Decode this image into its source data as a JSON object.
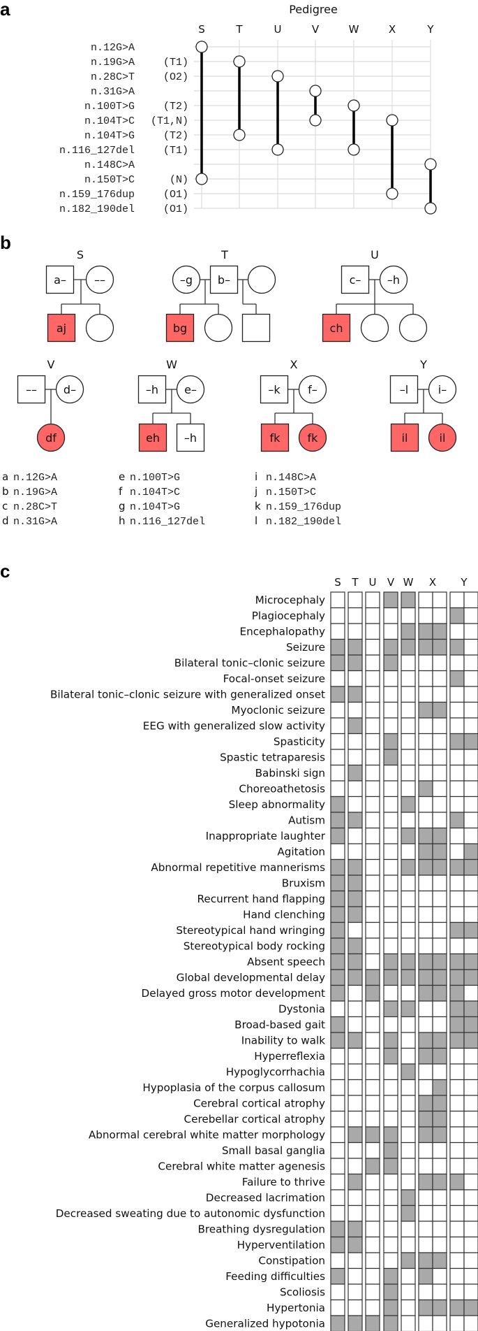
{
  "panel_labels": {
    "a": "a",
    "b": "b",
    "c": "c"
  },
  "panel_a": {
    "title": "Pedigree",
    "families": [
      "S",
      "T",
      "U",
      "V",
      "W",
      "X",
      "Y"
    ],
    "variants": [
      {
        "name": "n.12G>A",
        "note": ""
      },
      {
        "name": "n.19G>A",
        "note": "(T1)"
      },
      {
        "name": "n.28C>T",
        "note": "(O2)"
      },
      {
        "name": "n.31G>A",
        "note": ""
      },
      {
        "name": "n.100T>G",
        "note": "(T2)"
      },
      {
        "name": "n.104T>C",
        "note": "(T1,N)"
      },
      {
        "name": "n.104T>G",
        "note": "(T2)"
      },
      {
        "name": "n.116_127del",
        "note": "(T1)"
      },
      {
        "name": "n.148C>A",
        "note": ""
      },
      {
        "name": "n.150T>C",
        "note": "(N)"
      },
      {
        "name": "n.159_176dup",
        "note": "(O1)"
      },
      {
        "name": "n.182_190del",
        "note": "(O1)"
      }
    ],
    "family_variants": {
      "S": [
        "n.12G>A",
        "n.150T>C"
      ],
      "T": [
        "n.19G>A",
        "n.104T>G"
      ],
      "U": [
        "n.28C>T",
        "n.116_127del"
      ],
      "V": [
        "n.31G>A",
        "n.104T>C"
      ],
      "W": [
        "n.100T>G",
        "n.116_127del"
      ],
      "X": [
        "n.104T>C",
        "n.159_176dup"
      ],
      "Y": [
        "n.148C>A",
        "n.182_190del"
      ]
    }
  },
  "panel_b": {
    "affected_color": "#ff6666",
    "families": [
      {
        "id": "S",
        "parents": [
          {
            "sex": "M",
            "genotype": "a–"
          },
          {
            "sex": "F",
            "genotype": "––"
          }
        ],
        "children": [
          {
            "sex": "M",
            "affected": true,
            "genotype": "aj"
          },
          {
            "sex": "F",
            "affected": false,
            "genotype": ""
          }
        ]
      },
      {
        "id": "T",
        "parents": [
          {
            "sex": "F",
            "genotype": "–g"
          },
          {
            "sex": "M",
            "genotype": "b–"
          },
          {
            "sex": "F",
            "genotype": ""
          }
        ],
        "children": [
          {
            "sex": "M",
            "affected": true,
            "genotype": "bg"
          },
          {
            "sex": "F",
            "affected": false,
            "genotype": ""
          },
          {
            "sex": "M",
            "affected": false,
            "genotype": ""
          }
        ]
      },
      {
        "id": "U",
        "parents": [
          {
            "sex": "M",
            "genotype": "c–"
          },
          {
            "sex": "F",
            "genotype": "–h"
          }
        ],
        "children": [
          {
            "sex": "M",
            "affected": true,
            "genotype": "ch"
          },
          {
            "sex": "F",
            "affected": false,
            "genotype": ""
          },
          {
            "sex": "F",
            "affected": false,
            "genotype": ""
          }
        ]
      },
      {
        "id": "V",
        "parents": [
          {
            "sex": "M",
            "genotype": "––"
          },
          {
            "sex": "F",
            "genotype": "d–"
          }
        ],
        "children": [
          {
            "sex": "F",
            "affected": true,
            "genotype": "df"
          }
        ]
      },
      {
        "id": "W",
        "parents": [
          {
            "sex": "M",
            "genotype": "–h"
          },
          {
            "sex": "F",
            "genotype": "e–"
          }
        ],
        "children": [
          {
            "sex": "M",
            "affected": true,
            "genotype": "eh"
          },
          {
            "sex": "M",
            "affected": false,
            "genotype": "–h"
          }
        ]
      },
      {
        "id": "X",
        "parents": [
          {
            "sex": "M",
            "genotype": "–k"
          },
          {
            "sex": "F",
            "genotype": "f–"
          }
        ],
        "children": [
          {
            "sex": "M",
            "affected": true,
            "genotype": "fk"
          },
          {
            "sex": "F",
            "affected": true,
            "genotype": "fk"
          }
        ]
      },
      {
        "id": "Y",
        "parents": [
          {
            "sex": "M",
            "genotype": "–l"
          },
          {
            "sex": "F",
            "genotype": "i–"
          }
        ],
        "children": [
          {
            "sex": "M",
            "affected": true,
            "genotype": "il"
          },
          {
            "sex": "F",
            "affected": true,
            "genotype": "il"
          }
        ]
      }
    ],
    "legend": [
      {
        "key": "a",
        "variant": "n.12G>A"
      },
      {
        "key": "b",
        "variant": "n.19G>A"
      },
      {
        "key": "c",
        "variant": "n.28C>T"
      },
      {
        "key": "d",
        "variant": "n.31G>A"
      },
      {
        "key": "e",
        "variant": "n.100T>G"
      },
      {
        "key": "f",
        "variant": "n.104T>C"
      },
      {
        "key": "g",
        "variant": "n.104T>G"
      },
      {
        "key": "h",
        "variant": "n.116_127del"
      },
      {
        "key": "i",
        "variant": "n.148C>A"
      },
      {
        "key": "j",
        "variant": "n.150T>C"
      },
      {
        "key": "k",
        "variant": "n.159_176dup"
      },
      {
        "key": "l",
        "variant": "n.182_190del"
      }
    ]
  },
  "chart_data": {
    "type": "heatmap",
    "present_color": "#a9a9a9",
    "absent_color": "#ffffff",
    "column_groups": [
      {
        "family": "S",
        "individuals": 1
      },
      {
        "family": "T",
        "individuals": 1
      },
      {
        "family": "U",
        "individuals": 1
      },
      {
        "family": "V",
        "individuals": 1
      },
      {
        "family": "W",
        "individuals": 1
      },
      {
        "family": "X",
        "individuals": 2
      },
      {
        "family": "Y",
        "individuals": 2
      }
    ],
    "phenotypes": [
      {
        "name": "Microcephaly",
        "values": [
          0,
          0,
          0,
          1,
          1,
          0,
          0,
          0,
          0
        ]
      },
      {
        "name": "Plagiocephaly",
        "values": [
          0,
          0,
          0,
          0,
          0,
          0,
          0,
          1,
          0
        ]
      },
      {
        "name": "Encephalopathy",
        "values": [
          0,
          0,
          0,
          0,
          1,
          1,
          1,
          0,
          0
        ]
      },
      {
        "name": "Seizure",
        "values": [
          1,
          1,
          0,
          1,
          1,
          1,
          1,
          1,
          0
        ]
      },
      {
        "name": "Bilateral tonic–clonic seizure",
        "values": [
          1,
          1,
          0,
          1,
          0,
          0,
          0,
          0,
          0
        ]
      },
      {
        "name": "Focal-onset seizure",
        "values": [
          0,
          0,
          0,
          0,
          0,
          0,
          0,
          1,
          0
        ]
      },
      {
        "name": "Bilateral tonic–clonic seizure with generalized onset",
        "values": [
          1,
          1,
          0,
          0,
          0,
          0,
          0,
          0,
          0
        ]
      },
      {
        "name": "Myoclonic seizure",
        "values": [
          0,
          0,
          0,
          0,
          0,
          1,
          1,
          0,
          0
        ]
      },
      {
        "name": "EEG with generalized slow activity",
        "values": [
          0,
          1,
          0,
          0,
          0,
          0,
          0,
          0,
          0
        ]
      },
      {
        "name": "Spasticity",
        "values": [
          0,
          0,
          0,
          1,
          0,
          0,
          0,
          1,
          1
        ]
      },
      {
        "name": "Spastic tetraparesis",
        "values": [
          0,
          0,
          0,
          1,
          0,
          0,
          0,
          0,
          0
        ]
      },
      {
        "name": "Babinski sign",
        "values": [
          0,
          1,
          0,
          0,
          0,
          0,
          0,
          0,
          0
        ]
      },
      {
        "name": "Choreoathetosis",
        "values": [
          0,
          0,
          0,
          0,
          0,
          1,
          0,
          0,
          0
        ]
      },
      {
        "name": "Sleep abnormality",
        "values": [
          1,
          0,
          0,
          0,
          1,
          0,
          0,
          0,
          0
        ]
      },
      {
        "name": "Autism",
        "values": [
          1,
          1,
          0,
          0,
          0,
          0,
          0,
          1,
          0
        ]
      },
      {
        "name": "Inappropriate laughter",
        "values": [
          1,
          0,
          0,
          0,
          1,
          1,
          1,
          0,
          0
        ]
      },
      {
        "name": "Agitation",
        "values": [
          0,
          0,
          0,
          0,
          0,
          1,
          1,
          0,
          1
        ]
      },
      {
        "name": "Abnormal repetitive mannerisms",
        "values": [
          1,
          1,
          0,
          0,
          1,
          1,
          1,
          1,
          1
        ]
      },
      {
        "name": "Bruxism",
        "values": [
          1,
          1,
          0,
          0,
          0,
          0,
          0,
          0,
          0
        ]
      },
      {
        "name": "Recurrent hand flapping",
        "values": [
          1,
          1,
          0,
          0,
          0,
          0,
          0,
          0,
          0
        ]
      },
      {
        "name": "Hand clenching",
        "values": [
          1,
          1,
          0,
          0,
          0,
          0,
          0,
          0,
          0
        ]
      },
      {
        "name": "Stereotypical hand wringing",
        "values": [
          1,
          0,
          0,
          0,
          0,
          0,
          0,
          1,
          1
        ]
      },
      {
        "name": "Stereotypical body rocking",
        "values": [
          1,
          1,
          0,
          0,
          0,
          0,
          0,
          0,
          0
        ]
      },
      {
        "name": "Absent speech",
        "values": [
          1,
          1,
          0,
          1,
          1,
          1,
          1,
          1,
          1
        ]
      },
      {
        "name": "Global developmental delay",
        "values": [
          1,
          1,
          1,
          1,
          1,
          1,
          1,
          1,
          1
        ]
      },
      {
        "name": "Delayed gross motor development",
        "values": [
          1,
          0,
          1,
          0,
          0,
          1,
          1,
          1,
          0
        ]
      },
      {
        "name": "Dystonia",
        "values": [
          0,
          0,
          0,
          1,
          1,
          0,
          0,
          1,
          1
        ]
      },
      {
        "name": "Broad-based gait",
        "values": [
          1,
          0,
          0,
          0,
          0,
          0,
          0,
          1,
          1
        ]
      },
      {
        "name": "Inability to walk",
        "values": [
          1,
          1,
          0,
          1,
          0,
          1,
          1,
          1,
          1
        ]
      },
      {
        "name": "Hyperreflexia",
        "values": [
          0,
          0,
          0,
          1,
          0,
          1,
          1,
          0,
          0
        ]
      },
      {
        "name": "Hypoglycorrhachia",
        "values": [
          0,
          0,
          0,
          0,
          1,
          0,
          0,
          0,
          0
        ]
      },
      {
        "name": "Hypoplasia of the corpus callosum",
        "values": [
          0,
          0,
          0,
          0,
          0,
          0,
          1,
          0,
          0
        ]
      },
      {
        "name": "Cerebral cortical atrophy",
        "values": [
          0,
          0,
          0,
          0,
          0,
          1,
          1,
          0,
          0
        ]
      },
      {
        "name": "Cerebellar cortical atrophy",
        "values": [
          0,
          0,
          0,
          0,
          0,
          1,
          1,
          0,
          0
        ]
      },
      {
        "name": "Abnormal cerebral white matter morphology",
        "values": [
          0,
          1,
          1,
          1,
          0,
          1,
          1,
          0,
          0
        ]
      },
      {
        "name": "Small basal ganglia",
        "values": [
          0,
          0,
          0,
          1,
          0,
          0,
          0,
          0,
          0
        ]
      },
      {
        "name": "Cerebral white matter agenesis",
        "values": [
          0,
          0,
          1,
          1,
          0,
          0,
          0,
          0,
          0
        ]
      },
      {
        "name": "Failure to thrive",
        "values": [
          0,
          1,
          0,
          0,
          0,
          1,
          1,
          1,
          0
        ]
      },
      {
        "name": "Decreased lacrimation",
        "values": [
          0,
          0,
          0,
          0,
          1,
          0,
          0,
          0,
          0
        ]
      },
      {
        "name": "Decreased sweating due to autonomic dysfunction",
        "values": [
          0,
          0,
          0,
          0,
          1,
          0,
          0,
          0,
          0
        ]
      },
      {
        "name": "Breathing dysregulation",
        "values": [
          1,
          1,
          0,
          0,
          0,
          0,
          0,
          0,
          0
        ]
      },
      {
        "name": "Hyperventilation",
        "values": [
          1,
          1,
          0,
          0,
          0,
          0,
          0,
          0,
          0
        ]
      },
      {
        "name": "Constipation",
        "values": [
          0,
          0,
          0,
          0,
          1,
          1,
          1,
          0,
          0
        ]
      },
      {
        "name": "Feeding difficulties",
        "values": [
          1,
          0,
          0,
          1,
          0,
          1,
          0,
          0,
          0
        ]
      },
      {
        "name": "Scoliosis",
        "values": [
          0,
          0,
          0,
          1,
          0,
          0,
          0,
          0,
          0
        ]
      },
      {
        "name": "Hypertonia",
        "values": [
          0,
          0,
          0,
          1,
          0,
          1,
          1,
          1,
          1
        ]
      },
      {
        "name": "Generalized hypotonia",
        "values": [
          1,
          1,
          1,
          1,
          0,
          0,
          0,
          0,
          0
        ]
      }
    ]
  }
}
